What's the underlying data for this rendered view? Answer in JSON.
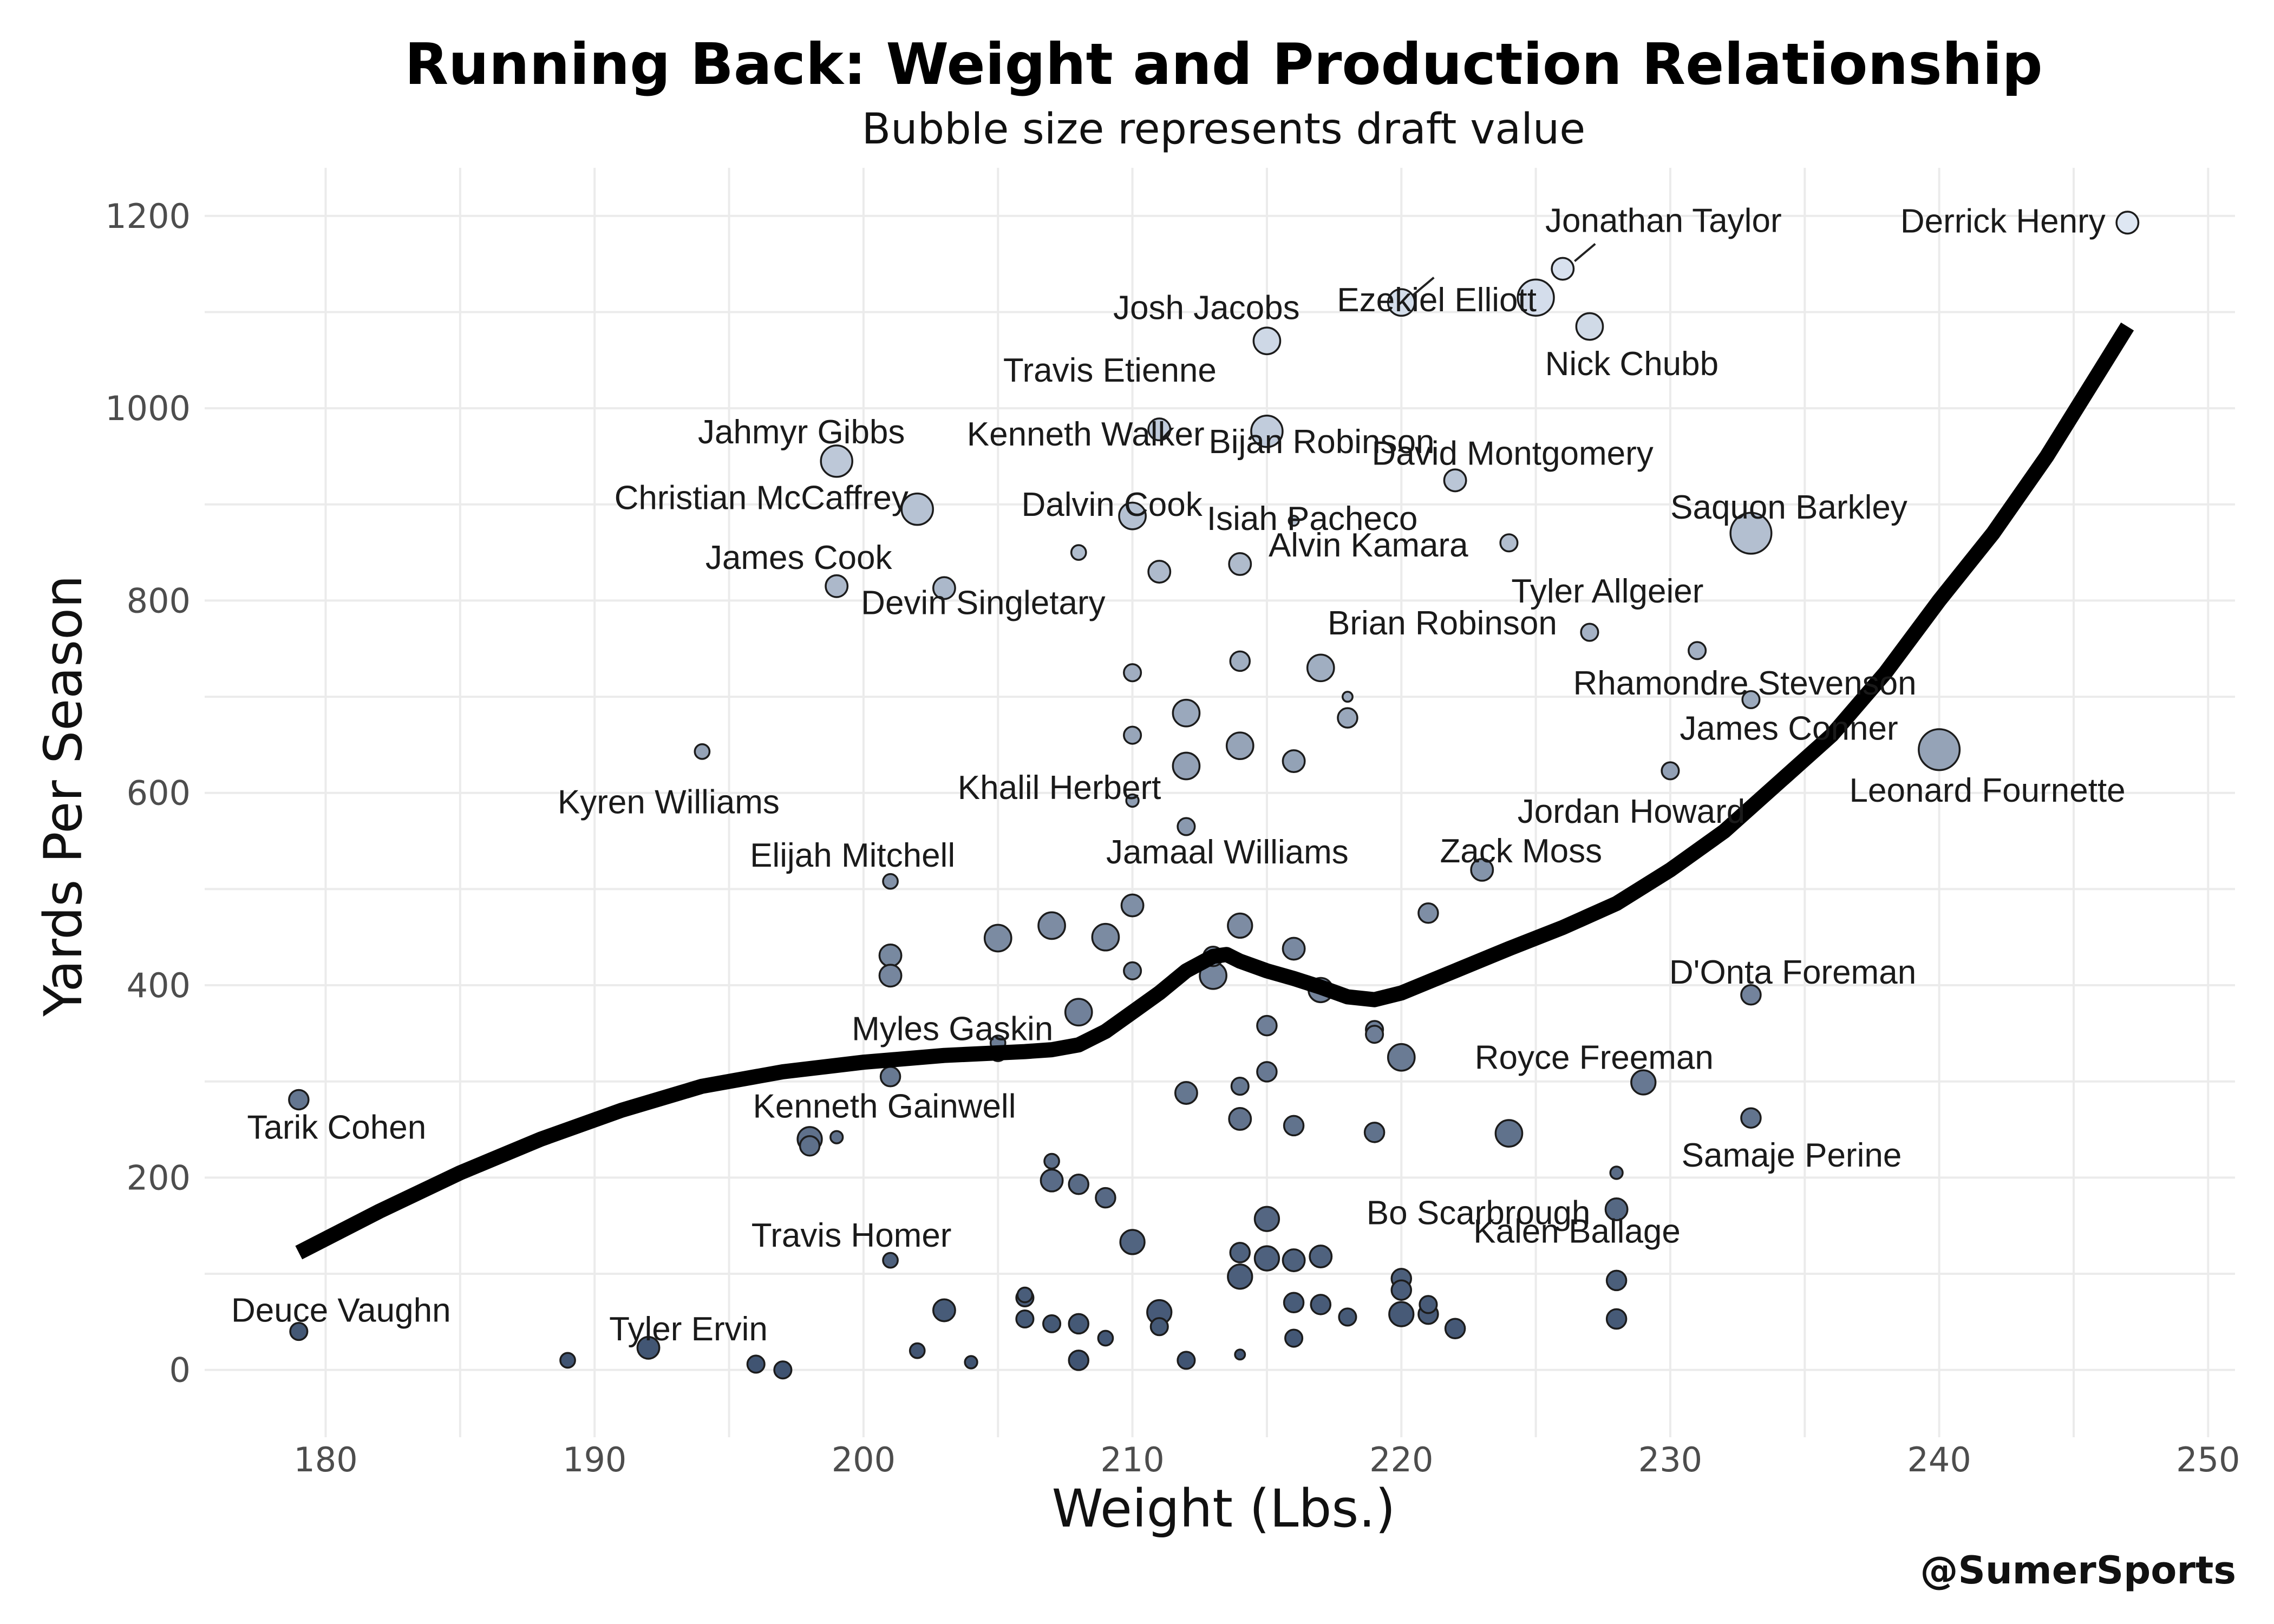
{
  "chart_data": {
    "type": "scatter",
    "title": "Running Back: Weight and Production Relationship",
    "subtitle": "Bubble size represents draft value",
    "xlabel": "Weight (Lbs.)",
    "ylabel": "Yards Per Season",
    "xlim": [
      175.5,
      251
    ],
    "ylim": [
      -70,
      1250
    ],
    "x_ticks": [
      180,
      190,
      200,
      210,
      220,
      230,
      240,
      250
    ],
    "y_ticks": [
      0,
      200,
      400,
      600,
      800,
      1000,
      1200
    ],
    "grid": true,
    "legend": "none",
    "credit": "@SumerSports",
    "color_scale": {
      "low": "#3f5371",
      "high": "#dfe8f4"
    },
    "points": [
      {
        "x": 247,
        "y": 1193,
        "size": 3,
        "label": "Derrick Henry"
      },
      {
        "x": 226,
        "y": 1145,
        "size": 3,
        "label": "Jonathan Taylor"
      },
      {
        "x": 225,
        "y": 1115,
        "size": 6,
        "label": "Ezekiel Elliott"
      },
      {
        "x": 220,
        "y": 1110,
        "size": 4,
        "label": "Josh Jacobs"
      },
      {
        "x": 227,
        "y": 1085,
        "size": 4,
        "label": "Nick Chubb"
      },
      {
        "x": 215,
        "y": 1070,
        "size": 4,
        "label": "Travis Etienne"
      },
      {
        "x": 211,
        "y": 978,
        "size": 3,
        "label": "Kenneth Walker"
      },
      {
        "x": 215,
        "y": 976,
        "size": 5,
        "label": "Bijan Robinson"
      },
      {
        "x": 199,
        "y": 945,
        "size": 5,
        "label": "Jahmyr Gibbs"
      },
      {
        "x": 222,
        "y": 925,
        "size": 3,
        "label": "David Montgomery"
      },
      {
        "x": 202,
        "y": 895,
        "size": 5,
        "label": "Christian McCaffrey"
      },
      {
        "x": 210,
        "y": 888,
        "size": 4,
        "label": "Dalvin Cook"
      },
      {
        "x": 216,
        "y": 883,
        "size": 0.5,
        "label": "Isiah Pacheco"
      },
      {
        "x": 233,
        "y": 870,
        "size": 7,
        "label": "Saquon Barkley"
      },
      {
        "x": 224,
        "y": 860,
        "size": 2,
        "label": "Tyler Allgeier"
      },
      {
        "x": 208,
        "y": 850,
        "size": 1.5
      },
      {
        "x": 214,
        "y": 838,
        "size": 3,
        "label": "Alvin Kamara"
      },
      {
        "x": 211,
        "y": 830,
        "size": 3
      },
      {
        "x": 199,
        "y": 815,
        "size": 3,
        "label": "James Cook"
      },
      {
        "x": 203,
        "y": 813,
        "size": 3,
        "label": "Devin Singletary"
      },
      {
        "x": 227,
        "y": 767,
        "size": 2,
        "label": "Brian Robinson"
      },
      {
        "x": 231,
        "y": 748,
        "size": 2,
        "label": "Rhamondre Stevenson"
      },
      {
        "x": 214,
        "y": 737,
        "size": 2.5
      },
      {
        "x": 217,
        "y": 730,
        "size": 4
      },
      {
        "x": 210,
        "y": 725,
        "size": 2
      },
      {
        "x": 218,
        "y": 700,
        "size": 0.5
      },
      {
        "x": 233,
        "y": 697,
        "size": 2,
        "label": "James Conner"
      },
      {
        "x": 212,
        "y": 683,
        "size": 4
      },
      {
        "x": 218,
        "y": 678,
        "size": 2.5
      },
      {
        "x": 210,
        "y": 660,
        "size": 2
      },
      {
        "x": 214,
        "y": 649,
        "size": 4
      },
      {
        "x": 240,
        "y": 645,
        "size": 7,
        "label": "Leonard Fournette"
      },
      {
        "x": 194,
        "y": 643,
        "size": 1.5,
        "label": "Kyren Williams"
      },
      {
        "x": 216,
        "y": 633,
        "size": 3
      },
      {
        "x": 212,
        "y": 628,
        "size": 4
      },
      {
        "x": 230,
        "y": 623,
        "size": 2,
        "label": "Jordan Howard"
      },
      {
        "x": 210,
        "y": 592,
        "size": 1,
        "label": "Khalil Herbert"
      },
      {
        "x": 212,
        "y": 565,
        "size": 2,
        "label": "Jamaal Williams"
      },
      {
        "x": 223,
        "y": 520,
        "size": 3,
        "label": "Zack Moss"
      },
      {
        "x": 201,
        "y": 508,
        "size": 1.5,
        "label": "Elijah Mitchell"
      },
      {
        "x": 210,
        "y": 483,
        "size": 3
      },
      {
        "x": 221,
        "y": 475,
        "size": 2.5
      },
      {
        "x": 207,
        "y": 462,
        "size": 4
      },
      {
        "x": 214,
        "y": 462,
        "size": 3.5
      },
      {
        "x": 209,
        "y": 450,
        "size": 4
      },
      {
        "x": 205,
        "y": 449,
        "size": 4
      },
      {
        "x": 216,
        "y": 438,
        "size": 3
      },
      {
        "x": 201,
        "y": 431,
        "size": 3
      },
      {
        "x": 213,
        "y": 430,
        "size": 2.5
      },
      {
        "x": 210,
        "y": 415,
        "size": 2
      },
      {
        "x": 201,
        "y": 410,
        "size": 3
      },
      {
        "x": 213,
        "y": 410,
        "size": 4
      },
      {
        "x": 217,
        "y": 395,
        "size": 3.5
      },
      {
        "x": 233,
        "y": 390,
        "size": 2.5,
        "label": "D'Onta Foreman"
      },
      {
        "x": 208,
        "y": 372,
        "size": 4
      },
      {
        "x": 215,
        "y": 358,
        "size": 2.5
      },
      {
        "x": 219,
        "y": 354,
        "size": 2
      },
      {
        "x": 219,
        "y": 349,
        "size": 2
      },
      {
        "x": 205,
        "y": 340,
        "size": 1.5,
        "label": "Myles Gaskin"
      },
      {
        "x": 205,
        "y": 330,
        "size": 2
      },
      {
        "x": 220,
        "y": 325,
        "size": 4
      },
      {
        "x": 215,
        "y": 310,
        "size": 2.5
      },
      {
        "x": 201,
        "y": 305,
        "size": 2.5
      },
      {
        "x": 229,
        "y": 299,
        "size": 3.5,
        "label": "Royce Freeman"
      },
      {
        "x": 214,
        "y": 295,
        "size": 2
      },
      {
        "x": 212,
        "y": 288,
        "size": 3
      },
      {
        "x": 179,
        "y": 281,
        "size": 2.5,
        "label": "Tarik Cohen"
      },
      {
        "x": 233,
        "y": 262,
        "size": 2.5,
        "label": "Samaje Perine"
      },
      {
        "x": 214,
        "y": 261,
        "size": 3
      },
      {
        "x": 216,
        "y": 254,
        "size": 2.5
      },
      {
        "x": 219,
        "y": 247,
        "size": 2.5
      },
      {
        "x": 224,
        "y": 246,
        "size": 4
      },
      {
        "x": 198,
        "y": 240,
        "size": 3.5,
        "label": "Kenneth Gainwell"
      },
      {
        "x": 199,
        "y": 242,
        "size": 1
      },
      {
        "x": 198,
        "y": 233,
        "size": 2.5
      },
      {
        "x": 207,
        "y": 217,
        "size": 1.5
      },
      {
        "x": 228,
        "y": 205,
        "size": 1,
        "label": "Bo Scarbrough"
      },
      {
        "x": 207,
        "y": 197,
        "size": 3
      },
      {
        "x": 208,
        "y": 193,
        "size": 2.5
      },
      {
        "x": 209,
        "y": 179,
        "size": 2.5
      },
      {
        "x": 228,
        "y": 167,
        "size": 3
      },
      {
        "x": 215,
        "y": 157,
        "size": 3.5
      },
      {
        "x": 210,
        "y": 133,
        "size": 3.5
      },
      {
        "x": 214,
        "y": 122,
        "size": 2.5
      },
      {
        "x": 217,
        "y": 118,
        "size": 3
      },
      {
        "x": 215,
        "y": 116,
        "size": 3.5
      },
      {
        "x": 216,
        "y": 114,
        "size": 3
      },
      {
        "x": 201,
        "y": 114,
        "size": 1.5,
        "label": "Travis Homer"
      },
      {
        "x": 214,
        "y": 97,
        "size": 3.5
      },
      {
        "x": 220,
        "y": 95,
        "size": 2.5
      },
      {
        "x": 228,
        "y": 93,
        "size": 2.5,
        "label": "Kalen Ballage"
      },
      {
        "x": 220,
        "y": 83,
        "size": 2.5
      },
      {
        "x": 206,
        "y": 78,
        "size": 1.5
      },
      {
        "x": 206,
        "y": 75,
        "size": 2
      },
      {
        "x": 216,
        "y": 70,
        "size": 2.5
      },
      {
        "x": 217,
        "y": 68,
        "size": 2.5
      },
      {
        "x": 221,
        "y": 68,
        "size": 2
      },
      {
        "x": 203,
        "y": 62,
        "size": 3
      },
      {
        "x": 211,
        "y": 60,
        "size": 3.5
      },
      {
        "x": 220,
        "y": 58,
        "size": 3.5
      },
      {
        "x": 221,
        "y": 58,
        "size": 2.5
      },
      {
        "x": 218,
        "y": 55,
        "size": 2
      },
      {
        "x": 228,
        "y": 53,
        "size": 2.5
      },
      {
        "x": 206,
        "y": 53,
        "size": 2
      },
      {
        "x": 207,
        "y": 48,
        "size": 2
      },
      {
        "x": 208,
        "y": 48,
        "size": 2.5
      },
      {
        "x": 211,
        "y": 45,
        "size": 2
      },
      {
        "x": 222,
        "y": 43,
        "size": 2.5
      },
      {
        "x": 179,
        "y": 40,
        "size": 2,
        "label": "Deuce Vaughn"
      },
      {
        "x": 216,
        "y": 33,
        "size": 2
      },
      {
        "x": 209,
        "y": 33,
        "size": 1.5
      },
      {
        "x": 192,
        "y": 23,
        "size": 3,
        "label": "Tyler Ervin"
      },
      {
        "x": 202,
        "y": 20,
        "size": 1.5
      },
      {
        "x": 214,
        "y": 16,
        "size": 0.5
      },
      {
        "x": 189,
        "y": 10,
        "size": 1.5
      },
      {
        "x": 208,
        "y": 10,
        "size": 2.5
      },
      {
        "x": 212,
        "y": 10,
        "size": 2
      },
      {
        "x": 204,
        "y": 8,
        "size": 1
      },
      {
        "x": 196,
        "y": 6,
        "size": 2
      },
      {
        "x": 197,
        "y": 0,
        "size": 2
      }
    ],
    "trend": [
      [
        179,
        122
      ],
      [
        182,
        165
      ],
      [
        185,
        205
      ],
      [
        188,
        240
      ],
      [
        191,
        270
      ],
      [
        194,
        295
      ],
      [
        197,
        310
      ],
      [
        200,
        320
      ],
      [
        203,
        327
      ],
      [
        206,
        331
      ],
      [
        207,
        333
      ],
      [
        208,
        338
      ],
      [
        209,
        352
      ],
      [
        210,
        372
      ],
      [
        211,
        392
      ],
      [
        212,
        415
      ],
      [
        213,
        430
      ],
      [
        213.5,
        432
      ],
      [
        214,
        425
      ],
      [
        215,
        415
      ],
      [
        216,
        407
      ],
      [
        217,
        398
      ],
      [
        218,
        388
      ],
      [
        219,
        385
      ],
      [
        220,
        392
      ],
      [
        222,
        415
      ],
      [
        224,
        438
      ],
      [
        226,
        460
      ],
      [
        228,
        485
      ],
      [
        230,
        520
      ],
      [
        232,
        560
      ],
      [
        234,
        610
      ],
      [
        236,
        660
      ],
      [
        238,
        725
      ],
      [
        240,
        800
      ],
      [
        242,
        870
      ],
      [
        244,
        950
      ],
      [
        246,
        1040
      ],
      [
        247,
        1085
      ]
    ]
  }
}
